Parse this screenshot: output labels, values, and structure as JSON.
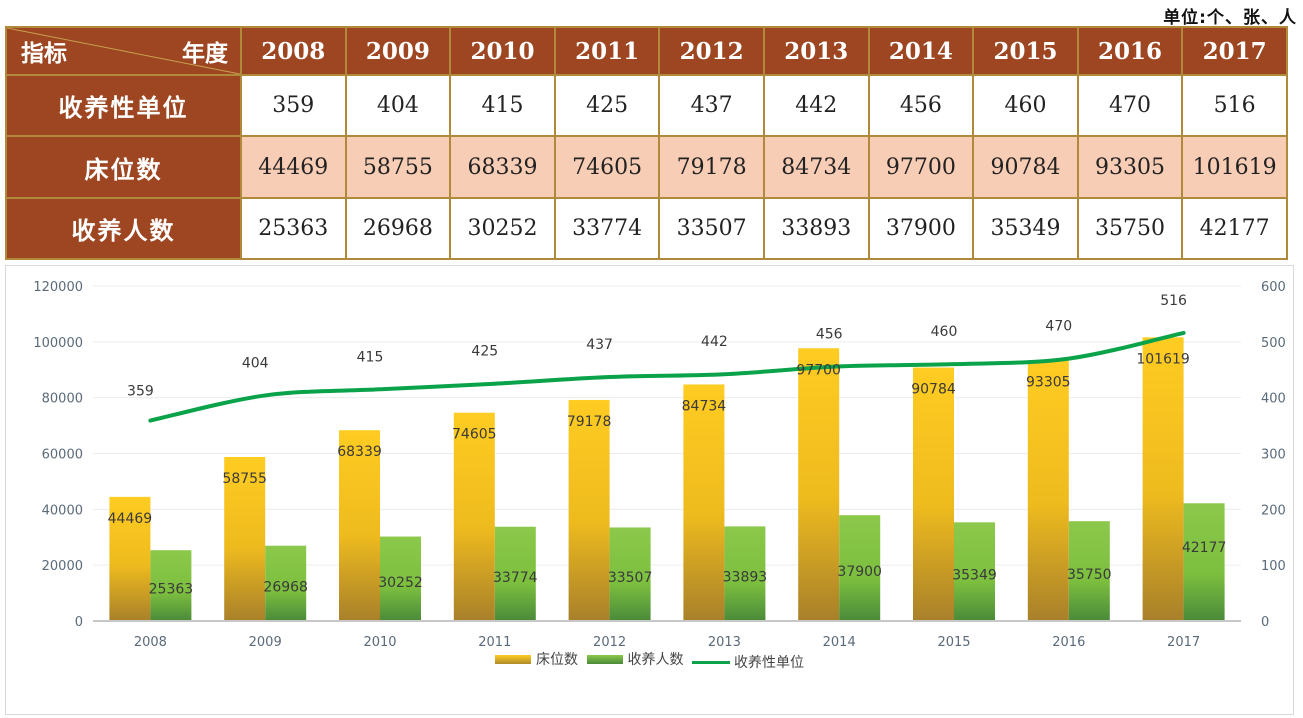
{
  "unit_note": "单位:个、张、人",
  "table": {
    "corner_top": "年度",
    "corner_bottom": "指标",
    "years": [
      "2008",
      "2009",
      "2010",
      "2011",
      "2012",
      "2013",
      "2014",
      "2015",
      "2016",
      "2017"
    ],
    "rows": [
      {
        "label": "收养性单位",
        "values": [
          "359",
          "404",
          "415",
          "425",
          "437",
          "442",
          "456",
          "460",
          "470",
          "516"
        ]
      },
      {
        "label": "床位数",
        "values": [
          "44469",
          "58755",
          "68339",
          "74605",
          "79178",
          "84734",
          "97700",
          "90784",
          "93305",
          "101619"
        ]
      },
      {
        "label": "收养人数",
        "values": [
          "25363",
          "26968",
          "30252",
          "33774",
          "33507",
          "33893",
          "37900",
          "35349",
          "35750",
          "42177"
        ]
      }
    ]
  },
  "colors": {
    "header_bg": "#9d4621",
    "beds": "#f5c518",
    "residents": "#7cc242",
    "units_line": "#0aa34a"
  },
  "chart_data": {
    "type": "bar",
    "title": "",
    "categories": [
      "2008",
      "2009",
      "2010",
      "2011",
      "2012",
      "2013",
      "2014",
      "2015",
      "2016",
      "2017"
    ],
    "series": [
      {
        "name": "床位数",
        "kind": "bar",
        "axis": "left",
        "values": [
          44469,
          58755,
          68339,
          74605,
          79178,
          84734,
          97700,
          90784,
          93305,
          101619
        ]
      },
      {
        "name": "收养人数",
        "kind": "bar",
        "axis": "left",
        "values": [
          25363,
          26968,
          30252,
          33774,
          33507,
          33893,
          37900,
          35349,
          35750,
          42177
        ]
      },
      {
        "name": "收养性单位",
        "kind": "line",
        "axis": "right",
        "values": [
          359,
          404,
          415,
          425,
          437,
          442,
          456,
          460,
          470,
          516
        ]
      }
    ],
    "left_axis": {
      "range": [
        0,
        120000
      ],
      "ticks": [
        "0",
        "20000",
        "40000",
        "60000",
        "80000",
        "100000",
        "120000"
      ]
    },
    "right_axis": {
      "range": [
        0,
        600
      ],
      "ticks": [
        "0",
        "100",
        "200",
        "300",
        "400",
        "500",
        "600"
      ]
    },
    "xlabel": "",
    "ylabel": "",
    "grid": true,
    "legend_position": "bottom",
    "data_labels": true
  }
}
